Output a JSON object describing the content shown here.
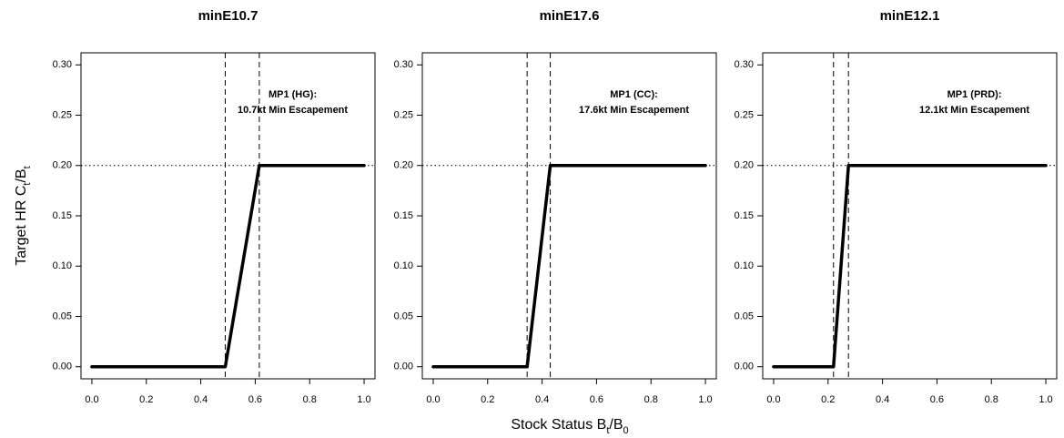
{
  "ylabel": [
    {
      "text": "Target HR C"
    },
    {
      "text": "t",
      "sub": true
    },
    {
      "text": "/B"
    },
    {
      "text": "t",
      "sub": true
    }
  ],
  "xlabel": [
    {
      "text": "Stock Status B"
    },
    {
      "text": "t",
      "sub": true
    },
    {
      "text": "/B"
    },
    {
      "text": "0",
      "sub": true
    }
  ],
  "chart_data": [
    {
      "type": "line",
      "title": "minE10.7",
      "annotation": [
        "MP1 (HG):",
        "10.7kt Min Escapement"
      ],
      "x": [
        0,
        0.49,
        0.615,
        1
      ],
      "series": [
        {
          "color": "#000000",
          "values": [
            0,
            0,
            0.2,
            0.2
          ]
        }
      ],
      "vlines": [
        0.49,
        0.615
      ],
      "hline": 0.2,
      "xlim": [
        -0.04,
        1.04
      ],
      "ylim": [
        -0.012,
        0.312
      ],
      "xticks": [
        {
          "value": 0,
          "label": "0.0"
        },
        {
          "value": 0.2,
          "label": "0.2"
        },
        {
          "value": 0.4,
          "label": "0.4"
        },
        {
          "value": 0.6,
          "label": "0.6"
        },
        {
          "value": 0.8,
          "label": "0.8"
        },
        {
          "value": 1,
          "label": "1.0"
        }
      ],
      "yticks": [
        {
          "value": 0,
          "label": "0.00"
        },
        {
          "value": 0.05,
          "label": "0.05"
        },
        {
          "value": 0.1,
          "label": "0.10"
        },
        {
          "value": 0.15,
          "label": "0.15"
        },
        {
          "value": 0.2,
          "label": "0.20"
        },
        {
          "value": 0.25,
          "label": "0.25"
        },
        {
          "value": 0.3,
          "label": "0.30"
        }
      ]
    },
    {
      "type": "line",
      "title": "minE17.6",
      "annotation": [
        "MP1 (CC):",
        "17.6kt Min Escapement"
      ],
      "x": [
        0,
        0.345,
        0.43,
        1
      ],
      "series": [
        {
          "color": "#000000",
          "values": [
            0,
            0,
            0.2,
            0.2
          ]
        }
      ],
      "vlines": [
        0.345,
        0.43
      ],
      "hline": 0.2,
      "xlim": [
        -0.04,
        1.04
      ],
      "ylim": [
        -0.012,
        0.312
      ],
      "xticks": [
        {
          "value": 0,
          "label": "0.0"
        },
        {
          "value": 0.2,
          "label": "0.2"
        },
        {
          "value": 0.4,
          "label": "0.4"
        },
        {
          "value": 0.6,
          "label": "0.6"
        },
        {
          "value": 0.8,
          "label": "0.8"
        },
        {
          "value": 1,
          "label": "1.0"
        }
      ],
      "yticks": [
        {
          "value": 0,
          "label": "0.00"
        },
        {
          "value": 0.05,
          "label": "0.05"
        },
        {
          "value": 0.1,
          "label": "0.10"
        },
        {
          "value": 0.15,
          "label": "0.15"
        },
        {
          "value": 0.2,
          "label": "0.20"
        },
        {
          "value": 0.25,
          "label": "0.25"
        },
        {
          "value": 0.3,
          "label": "0.30"
        }
      ]
    },
    {
      "type": "line",
      "title": "minE12.1",
      "annotation": [
        "MP1 (PRD):",
        "12.1kt Min Escapement"
      ],
      "x": [
        0,
        0.22,
        0.275,
        1
      ],
      "series": [
        {
          "color": "#000000",
          "values": [
            0,
            0,
            0.2,
            0.2
          ]
        }
      ],
      "vlines": [
        0.22,
        0.275
      ],
      "hline": 0.2,
      "xlim": [
        -0.04,
        1.04
      ],
      "ylim": [
        -0.012,
        0.312
      ],
      "xticks": [
        {
          "value": 0,
          "label": "0.0"
        },
        {
          "value": 0.2,
          "label": "0.2"
        },
        {
          "value": 0.4,
          "label": "0.4"
        },
        {
          "value": 0.6,
          "label": "0.6"
        },
        {
          "value": 0.8,
          "label": "0.8"
        },
        {
          "value": 1,
          "label": "1.0"
        }
      ],
      "yticks": [
        {
          "value": 0,
          "label": "0.00"
        },
        {
          "value": 0.05,
          "label": "0.05"
        },
        {
          "value": 0.1,
          "label": "0.10"
        },
        {
          "value": 0.15,
          "label": "0.15"
        },
        {
          "value": 0.2,
          "label": "0.20"
        },
        {
          "value": 0.25,
          "label": "0.25"
        },
        {
          "value": 0.3,
          "label": "0.30"
        }
      ]
    }
  ]
}
